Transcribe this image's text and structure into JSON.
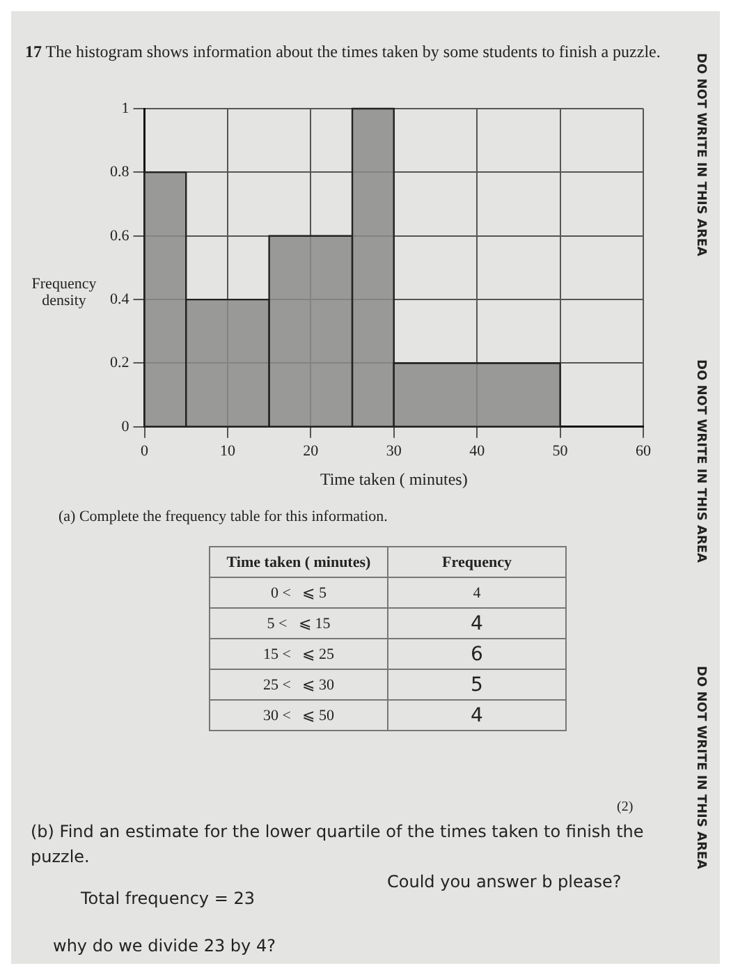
{
  "chart_data": {
    "type": "histogram",
    "title": "17 The histogram shows information about the times taken by some students to finish a puzzle.",
    "xlabel": "Time taken ( minutes)",
    "ylabel": "Frequency density",
    "bins": [
      0,
      5,
      15,
      25,
      30,
      50
    ],
    "values": [
      0.8,
      0.4,
      0.6,
      1,
      0.2
    ],
    "color": "#8c8c8a",
    "xlim": [
      0,
      60
    ],
    "xticks": [
      0,
      10,
      20,
      30,
      40,
      50,
      60
    ],
    "ylim": [
      0,
      1
    ],
    "yticks": [
      0,
      0.2,
      0.4,
      0.6,
      0.8,
      1
    ],
    "grid": true,
    "annotations": [
      "(a) Complete the frequency table for this information.",
      "Time taken ( minutes)",
      "Frequency",
      "0 <   ⩽ 5",
      "4",
      "5 <   ⩽ 15",
      "4",
      "15 <   ⩽ 25",
      "6",
      "25 <   ⩽ 30",
      "5",
      "30 <   ⩽ 50",
      "4",
      "(2)",
      "(b) Find an estimate for the lower quartile of the times taken to finish the puzzle.",
      "Total frequency = 23",
      "Could you answer b please?",
      "why do we divide 23 by 4?",
      "DO NOT WRITE IN THIS AREA",
      "DO NOT WRITE IN THIS AREA",
      "DO NOT WRITE IN THIS AREA"
    ]
  }
}
